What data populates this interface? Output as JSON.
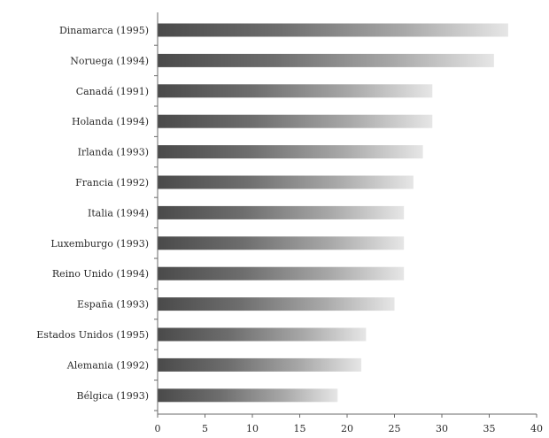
{
  "chart_data": {
    "type": "bar",
    "orientation": "horizontal",
    "categories": [
      "Dinamarca (1995)",
      "Noruega (1994)",
      "Canadá (1991)",
      "Holanda (1994)",
      "Irlanda (1993)",
      "Francia (1992)",
      "Italia (1994)",
      "Luxemburgo (1993)",
      "Reino Unido (1994)",
      "España (1993)",
      "Estados Unidos (1995)",
      "Alemania (1992)",
      "Bélgica (1993)"
    ],
    "values": [
      37,
      35.5,
      29,
      29,
      28,
      27,
      26,
      26,
      26,
      25,
      22,
      21.5,
      19
    ],
    "xlim": [
      0,
      40
    ],
    "xticks": [
      0,
      5,
      10,
      15,
      20,
      25,
      30,
      35,
      40
    ],
    "title": "",
    "xlabel": "",
    "ylabel": "",
    "grid": false,
    "legend": "none",
    "colors": {
      "bar_dark": "#4a4a4a",
      "bar_light": "#e6e6e6",
      "axis": "#6a6a6a",
      "text": "#2b2b2b"
    }
  }
}
